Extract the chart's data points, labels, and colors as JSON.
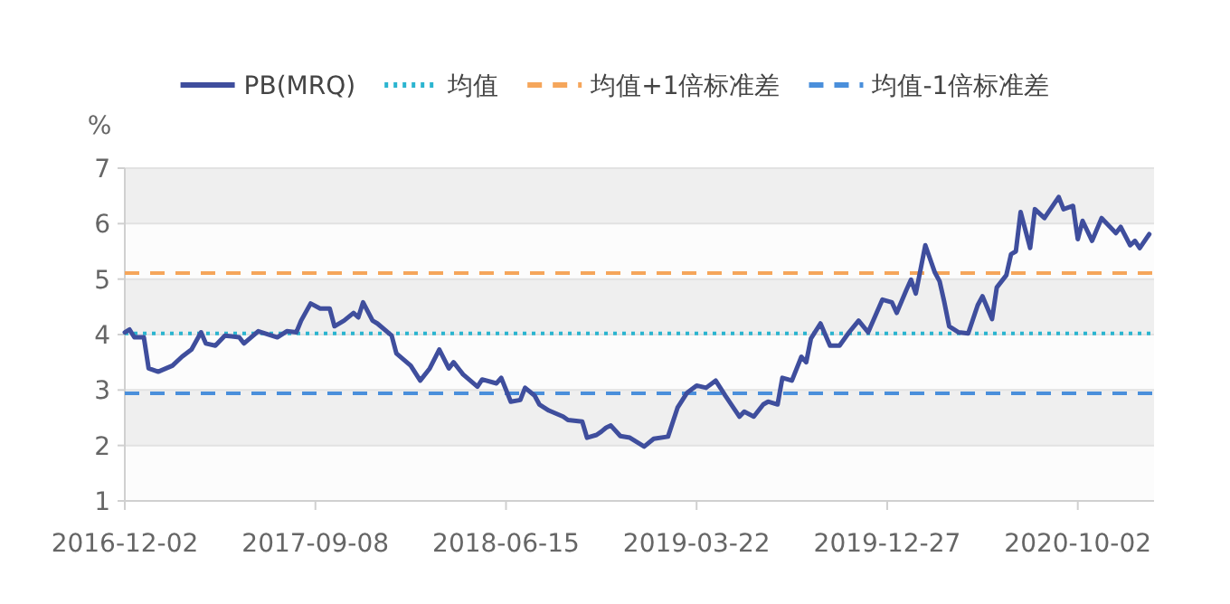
{
  "chart_data": {
    "type": "line",
    "ylabel": "%",
    "legend": "top",
    "grid": "y",
    "marker": "none",
    "xlim": [
      "2016-12-02",
      "2021-01-22"
    ],
    "xticks": [
      "2016-12-02",
      "2017-09-08",
      "2018-06-15",
      "2019-03-22",
      "2019-12-27",
      "2020-10-02"
    ],
    "ylim": [
      1,
      7
    ],
    "yticks": [
      1,
      2,
      3,
      4,
      5,
      6,
      7
    ],
    "ref_lines": [
      {
        "axis": "y",
        "value": 4.02,
        "label": "均值",
        "color": "#2bb5d0",
        "line_style": "dotted"
      },
      {
        "axis": "y",
        "value": 5.11,
        "label": "均值+1倍标准差",
        "color": "#f5a65b",
        "line_style": "dashed"
      },
      {
        "axis": "y",
        "value": 2.94,
        "label": "均值-1倍标准差",
        "color": "#4a8fdb",
        "line_style": "dashed"
      }
    ],
    "series": [
      {
        "name": "PB(MRQ)",
        "color": "#3f4e9d",
        "line_style": "solid",
        "x": [
          "2016-12-02",
          "2016-12-09",
          "2016-12-16",
          "2016-12-30",
          "2017-01-06",
          "2017-01-20",
          "2017-02-10",
          "2017-02-24",
          "2017-03-10",
          "2017-03-24",
          "2017-03-31",
          "2017-04-14",
          "2017-04-28",
          "2017-05-19",
          "2017-05-26",
          "2017-06-16",
          "2017-07-14",
          "2017-07-28",
          "2017-08-11",
          "2017-08-18",
          "2017-09-01",
          "2017-09-15",
          "2017-09-29",
          "2017-10-06",
          "2017-10-20",
          "2017-11-03",
          "2017-11-10",
          "2017-11-17",
          "2017-12-01",
          "2017-12-08",
          "2017-12-29",
          "2018-01-05",
          "2018-01-26",
          "2018-02-09",
          "2018-02-23",
          "2018-03-09",
          "2018-03-23",
          "2018-03-30",
          "2018-04-13",
          "2018-05-04",
          "2018-05-11",
          "2018-06-01",
          "2018-06-08",
          "2018-06-22",
          "2018-07-06",
          "2018-07-13",
          "2018-07-27",
          "2018-08-03",
          "2018-08-17",
          "2018-09-07",
          "2018-09-14",
          "2018-10-05",
          "2018-10-12",
          "2018-10-26",
          "2018-11-02",
          "2018-11-09",
          "2018-11-16",
          "2018-11-30",
          "2018-12-14",
          "2019-01-04",
          "2019-01-18",
          "2019-02-08",
          "2019-02-22",
          "2019-03-08",
          "2019-03-22",
          "2019-04-05",
          "2019-04-19",
          "2019-05-03",
          "2019-05-24",
          "2019-05-31",
          "2019-06-14",
          "2019-06-28",
          "2019-07-05",
          "2019-07-19",
          "2019-07-26",
          "2019-08-09",
          "2019-08-23",
          "2019-08-30",
          "2019-09-06",
          "2019-09-20",
          "2019-10-04",
          "2019-10-18",
          "2019-11-01",
          "2019-11-15",
          "2019-11-29",
          "2019-12-20",
          "2020-01-03",
          "2020-01-10",
          "2020-01-24",
          "2020-01-31",
          "2020-02-07",
          "2020-02-21",
          "2020-03-06",
          "2020-03-13",
          "2020-03-20",
          "2020-03-27",
          "2020-04-10",
          "2020-04-24",
          "2020-05-08",
          "2020-05-15",
          "2020-05-29",
          "2020-06-05",
          "2020-06-19",
          "2020-06-26",
          "2020-07-03",
          "2020-07-10",
          "2020-07-24",
          "2020-07-31",
          "2020-08-14",
          "2020-09-04",
          "2020-09-11",
          "2020-09-25",
          "2020-10-02",
          "2020-10-09",
          "2020-10-23",
          "2020-11-06",
          "2020-11-27",
          "2020-12-04",
          "2020-12-18",
          "2020-12-25",
          "2021-01-01",
          "2021-01-15"
        ],
        "values": [
          4.04,
          4.09,
          3.95,
          3.95,
          3.39,
          3.33,
          3.44,
          3.6,
          3.73,
          4.04,
          3.84,
          3.8,
          3.98,
          3.95,
          3.84,
          4.06,
          3.95,
          4.06,
          4.04,
          4.25,
          4.56,
          4.47,
          4.47,
          4.15,
          4.25,
          4.39,
          4.31,
          4.58,
          4.25,
          4.2,
          3.98,
          3.66,
          3.44,
          3.17,
          3.39,
          3.73,
          3.39,
          3.5,
          3.28,
          3.06,
          3.19,
          3.12,
          3.22,
          2.79,
          2.82,
          3.04,
          2.9,
          2.74,
          2.63,
          2.52,
          2.46,
          2.43,
          2.14,
          2.19,
          2.25,
          2.32,
          2.36,
          2.17,
          2.14,
          1.98,
          2.12,
          2.16,
          2.68,
          2.95,
          3.08,
          3.04,
          3.17,
          2.9,
          2.52,
          2.61,
          2.52,
          2.74,
          2.79,
          2.74,
          3.22,
          3.17,
          3.6,
          3.5,
          3.93,
          4.2,
          3.8,
          3.8,
          4.04,
          4.25,
          4.04,
          4.63,
          4.58,
          4.39,
          4.8,
          4.99,
          4.74,
          5.61,
          5.12,
          4.96,
          4.58,
          4.15,
          4.04,
          4.02,
          4.53,
          4.69,
          4.28,
          4.85,
          5.07,
          5.45,
          5.5,
          6.21,
          5.56,
          6.26,
          6.1,
          6.48,
          6.26,
          6.32,
          5.72,
          6.05,
          5.69,
          6.1,
          5.83,
          5.94,
          5.61,
          5.69,
          5.56,
          5.81
        ]
      }
    ]
  }
}
